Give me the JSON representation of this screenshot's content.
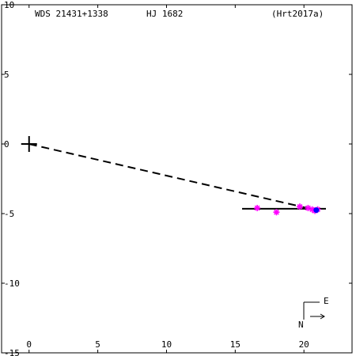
{
  "header": {
    "wds_id": "WDS 21431+1338",
    "discoverer": "HJ 1682",
    "reference": "(Hrt2017a)"
  },
  "compass": {
    "east_label": "E",
    "north_label": "N"
  },
  "chart_data": {
    "type": "scatter",
    "title": "",
    "xlabel": "",
    "ylabel": "",
    "xlim": [
      -2,
      23.5
    ],
    "ylim": [
      -15,
      10
    ],
    "grid": false,
    "x_ticks": [
      0,
      5,
      10,
      15,
      20
    ],
    "x_tick_labels": [
      "0",
      "5",
      "10",
      "15",
      "20"
    ],
    "y_ticks": [
      10,
      5,
      0,
      -5,
      -10,
      -15
    ],
    "y_tick_labels": [
      "10",
      "5",
      "0",
      "-5",
      "-10",
      "-15"
    ],
    "primary": {
      "x": 0,
      "y": 0
    },
    "series": [
      {
        "kind": "observations",
        "color": "#ff00ff",
        "points": [
          {
            "x": 16.6,
            "y": -4.6
          },
          {
            "x": 18.0,
            "y": -4.9
          },
          {
            "x": 19.7,
            "y": -4.5
          },
          {
            "x": 20.3,
            "y": -4.6
          },
          {
            "x": 20.6,
            "y": -4.7
          },
          {
            "x": 20.8,
            "y": -4.8
          },
          {
            "x": 21.0,
            "y": -4.7
          }
        ]
      },
      {
        "kind": "recent",
        "color": "#0000ff",
        "points": [
          {
            "x": 20.9,
            "y": -4.75
          }
        ]
      }
    ],
    "motion_line": {
      "x1": 15.5,
      "y1": -4.65,
      "x2": 21.6,
      "y2": -4.65,
      "color": "#000000"
    },
    "dashed_line": {
      "x1": 0,
      "y1": 0,
      "x2": 20.9,
      "y2": -4.75,
      "color": "#000000"
    }
  }
}
